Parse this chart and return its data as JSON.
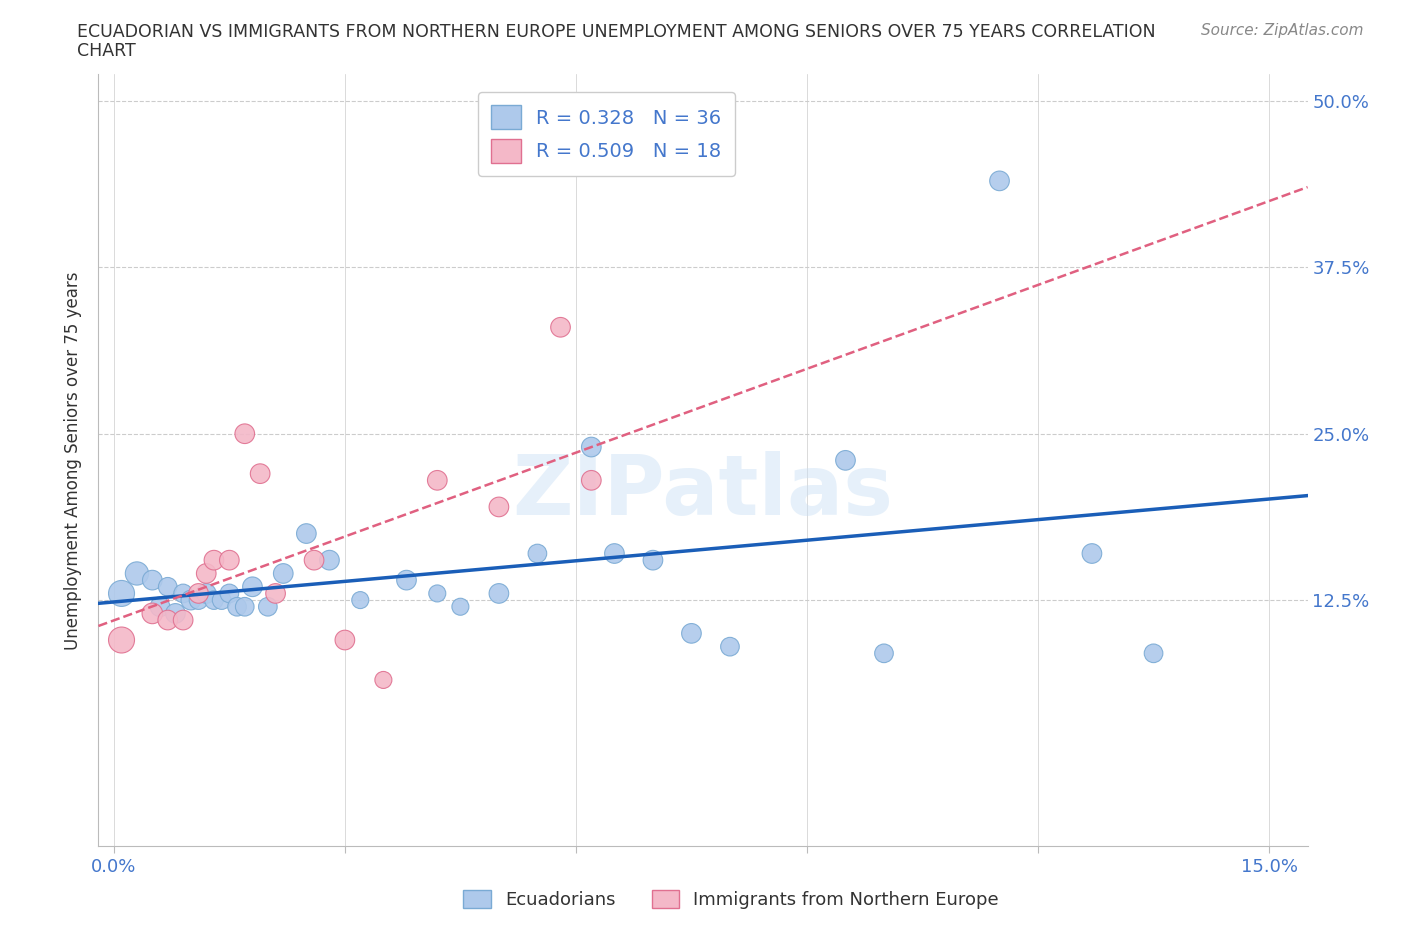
{
  "title_line1": "ECUADORIAN VS IMMIGRANTS FROM NORTHERN EUROPE UNEMPLOYMENT AMONG SENIORS OVER 75 YEARS CORRELATION",
  "title_line2": "CHART",
  "source": "Source: ZipAtlas.com",
  "ylabel": "Unemployment Among Seniors over 75 years",
  "xlim": [
    -0.002,
    0.155
  ],
  "ylim": [
    -0.06,
    0.52
  ],
  "xticks": [
    0.0,
    0.03,
    0.06,
    0.09,
    0.12,
    0.15
  ],
  "xticklabels": [
    "0.0%",
    "",
    "",
    "",
    "",
    "15.0%"
  ],
  "yticks": [
    0.125,
    0.25,
    0.375,
    0.5
  ],
  "yticklabels": [
    "12.5%",
    "25.0%",
    "37.5%",
    "50.0%"
  ],
  "grid_color": "#cccccc",
  "background_color": "#ffffff",
  "ecu_color": "#aec9eb",
  "ecu_edge_color": "#7aaad4",
  "ne_color": "#f4b8c8",
  "ne_edge_color": "#e07090",
  "ecu_line_color": "#1a5eb8",
  "ne_line_color": "#e06080",
  "legend_R_ecu": "R = 0.328",
  "legend_N_ecu": "N = 36",
  "legend_R_ne": "R = 0.509",
  "legend_N_ne": "N = 18",
  "ecu_x": [
    0.001,
    0.003,
    0.005,
    0.006,
    0.007,
    0.008,
    0.009,
    0.01,
    0.011,
    0.012,
    0.013,
    0.014,
    0.015,
    0.016,
    0.017,
    0.018,
    0.02,
    0.022,
    0.025,
    0.028,
    0.032,
    0.038,
    0.042,
    0.045,
    0.05,
    0.055,
    0.062,
    0.065,
    0.07,
    0.075,
    0.08,
    0.095,
    0.1,
    0.115,
    0.127,
    0.135
  ],
  "ecu_y": [
    0.13,
    0.145,
    0.14,
    0.12,
    0.135,
    0.115,
    0.13,
    0.125,
    0.125,
    0.13,
    0.125,
    0.125,
    0.13,
    0.12,
    0.12,
    0.135,
    0.12,
    0.145,
    0.175,
    0.155,
    0.125,
    0.14,
    0.13,
    0.12,
    0.13,
    0.16,
    0.24,
    0.16,
    0.155,
    0.1,
    0.09,
    0.23,
    0.085,
    0.44,
    0.16,
    0.085
  ],
  "ecu_sizes": [
    350,
    280,
    200,
    200,
    180,
    200,
    180,
    200,
    180,
    200,
    180,
    180,
    180,
    180,
    180,
    200,
    180,
    200,
    200,
    200,
    150,
    200,
    150,
    150,
    200,
    180,
    200,
    200,
    200,
    200,
    180,
    200,
    180,
    200,
    200,
    180
  ],
  "ne_x": [
    0.001,
    0.005,
    0.007,
    0.009,
    0.011,
    0.012,
    0.013,
    0.015,
    0.017,
    0.019,
    0.021,
    0.026,
    0.03,
    0.035,
    0.042,
    0.05,
    0.058,
    0.062
  ],
  "ne_y": [
    0.095,
    0.115,
    0.11,
    0.11,
    0.13,
    0.145,
    0.155,
    0.155,
    0.25,
    0.22,
    0.13,
    0.155,
    0.095,
    0.065,
    0.215,
    0.195,
    0.33,
    0.215
  ],
  "ne_sizes": [
    350,
    220,
    200,
    200,
    200,
    200,
    200,
    200,
    200,
    200,
    200,
    200,
    200,
    150,
    200,
    200,
    200,
    200
  ],
  "ecu_line_x0": 0.0,
  "ecu_line_x1": 0.155,
  "ne_line_x0": -0.002,
  "ne_line_x1": 0.155
}
